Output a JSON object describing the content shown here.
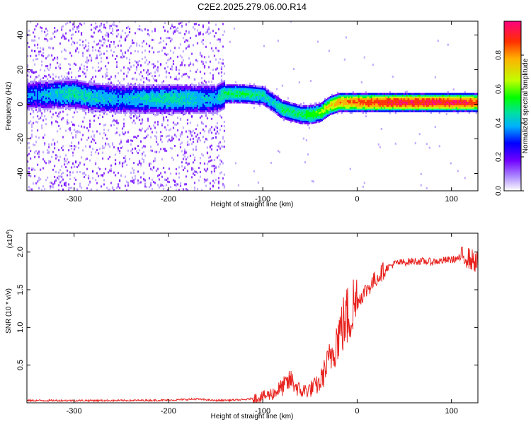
{
  "chart_data": [
    {
      "type": "heatmap",
      "title": "C2E2.2025.279.06.00.R14",
      "xlabel": "Height of straight line (km)",
      "ylabel": "Frequency (Hz)",
      "xlim": [
        -350,
        128
      ],
      "ylim": [
        -50,
        48
      ],
      "xticks": [
        -300,
        -200,
        -100,
        0,
        100
      ],
      "xtick_labels": [
        "-300",
        "-200",
        "-100",
        "0",
        "100"
      ],
      "yticks": [
        -40,
        -20,
        0,
        20,
        40
      ],
      "ytick_labels": [
        "-40",
        "-20",
        "0",
        "20",
        "40"
      ],
      "colorbar": {
        "label": "Normalized spectral amplitude",
        "range": [
          0,
          1
        ],
        "ticks": [
          0.0,
          0.2,
          0.4,
          0.6,
          0.8
        ],
        "tick_labels": [
          "0.0",
          "0.2",
          "0.4",
          "0.6",
          "0.8"
        ],
        "colors": [
          "#ffffff",
          "#b090ff",
          "#7000ff",
          "#0000ff",
          "#00b0ff",
          "#00e0a0",
          "#00ff00",
          "#c0ff00",
          "#ffb000",
          "#ff3000",
          "#ff0080"
        ]
      },
      "ridge": {
        "x": [
          -350,
          -300,
          -280,
          -250,
          -200,
          -150,
          -140,
          -120,
          -100,
          -90,
          -80,
          -60,
          -50,
          -40,
          -30,
          -20,
          -10,
          0,
          50,
          100,
          128
        ],
        "y": [
          5,
          6,
          4,
          3,
          3,
          3,
          6,
          6,
          5,
          1,
          -3,
          -6,
          -6,
          -5,
          -1,
          1,
          1,
          1,
          1,
          1,
          1
        ],
        "peak_amplitude": [
          0.35,
          0.5,
          0.45,
          0.4,
          0.5,
          0.4,
          0.55,
          0.55,
          0.5,
          0.45,
          0.55,
          0.55,
          0.6,
          0.65,
          0.75,
          0.8,
          0.85,
          0.9,
          0.95,
          0.95,
          0.9
        ]
      }
    },
    {
      "type": "line",
      "xlabel": "Height of straight line (km)",
      "ylabel": "SNR (10 * v/v)",
      "y_multiplier": "(x10",
      "y_multiplier_exp": "4",
      "y_multiplier_close": ")",
      "xlim": [
        -350,
        128
      ],
      "ylim": [
        0,
        2.25
      ],
      "xticks": [
        -300,
        -200,
        -100,
        0,
        100
      ],
      "xtick_labels": [
        "-300",
        "-200",
        "-100",
        "0",
        "100"
      ],
      "yticks": [
        0.5,
        1.0,
        1.5,
        2.0
      ],
      "ytick_labels": [
        "0.5",
        "1.0",
        "1.5",
        "2.0"
      ],
      "color": "#e8231f",
      "series": [
        {
          "name": "SNR",
          "x": [
            -350,
            -300,
            -250,
            -200,
            -170,
            -150,
            -120,
            -100,
            -90,
            -80,
            -70,
            -60,
            -50,
            -40,
            -30,
            -20,
            -10,
            0,
            10,
            20,
            30,
            40,
            60,
            80,
            100,
            110,
            115,
            120,
            128
          ],
          "y": [
            0.03,
            0.03,
            0.03,
            0.035,
            0.05,
            0.03,
            0.04,
            0.08,
            0.12,
            0.2,
            0.3,
            0.15,
            0.18,
            0.25,
            0.55,
            0.9,
            1.15,
            1.35,
            1.5,
            1.65,
            1.78,
            1.85,
            1.88,
            1.87,
            1.9,
            1.92,
            1.95,
            1.9,
            1.86
          ]
        }
      ]
    }
  ]
}
